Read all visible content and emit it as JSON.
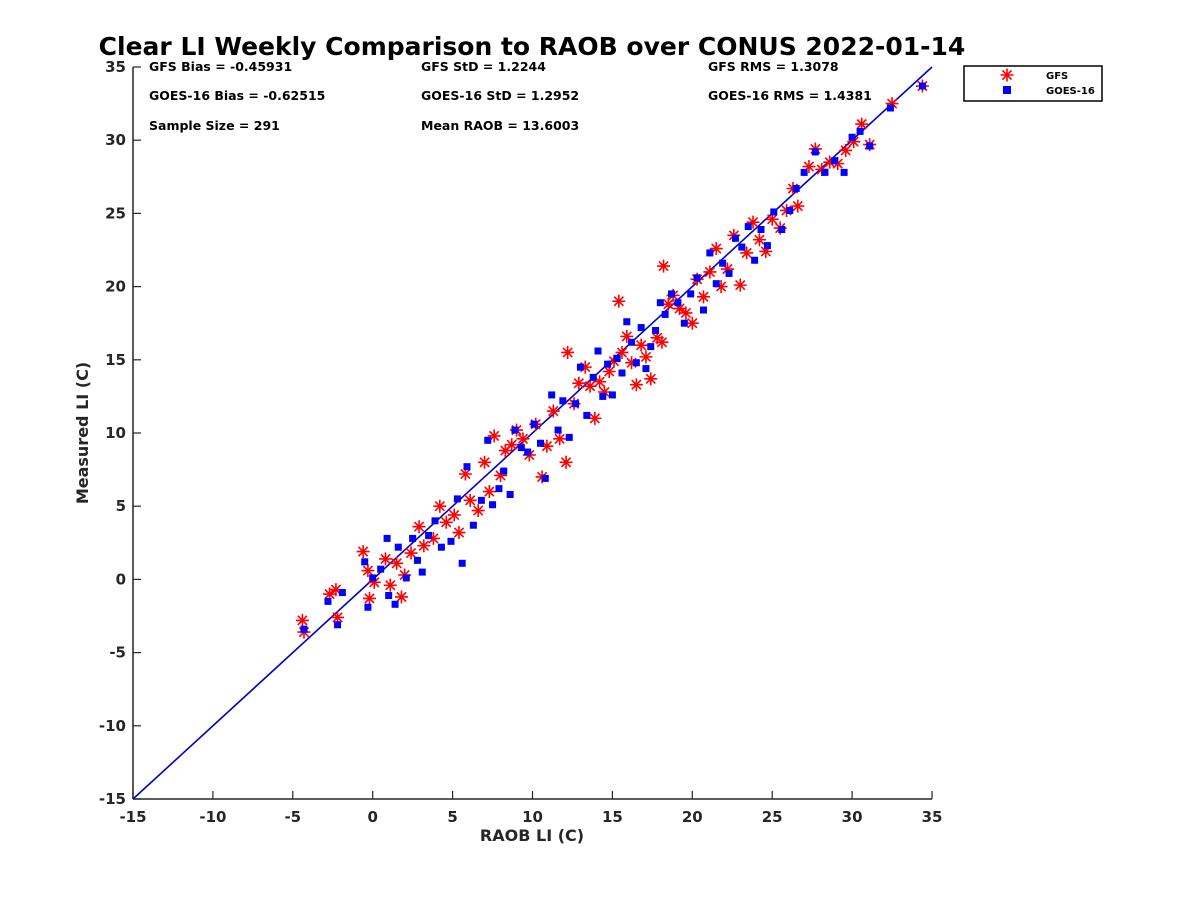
{
  "chart_data": {
    "type": "scatter",
    "title": "Clear LI Weekly Comparison to RAOB over CONUS 2022-01-14",
    "xlabel": "RAOB LI (C)",
    "ylabel": "Measured LI (C)",
    "xlim": [
      -15,
      35
    ],
    "ylim": [
      -15,
      35
    ],
    "xticks": [
      "-15",
      "-10",
      "-5",
      "0",
      "5",
      "10",
      "15",
      "20",
      "25",
      "30",
      "35"
    ],
    "yticks": [
      "-15",
      "-10",
      "-5",
      "0",
      "5",
      "10",
      "15",
      "20",
      "25",
      "30",
      "35"
    ],
    "reference_line": {
      "from": [
        -15,
        -15
      ],
      "to": [
        35,
        35
      ],
      "color": "#0000cc"
    },
    "stats": {
      "gfs_bias": "GFS Bias = -0.45931",
      "gfs_std": "GFS StD = 1.2244",
      "gfs_rms": "GFS RMS = 1.3078",
      "goes_bias": "GOES-16 Bias = -0.62515",
      "goes_std": "GOES-16 StD = 1.2952",
      "goes_rms": "GOES-16 RMS = 1.4381",
      "sample_size": "Sample Size = 291",
      "mean_raob": "Mean RAOB = 13.6003"
    },
    "legend": {
      "position": "top-right-outside",
      "entries": [
        "GFS",
        "GOES-16"
      ]
    },
    "series": [
      {
        "name": "GFS",
        "marker": "asterisk",
        "color": "#ff0000",
        "x": [
          -4.4,
          -4.3,
          -2.7,
          -2.3,
          -2.2,
          -0.6,
          -0.3,
          -0.2,
          0.1,
          0.8,
          1.1,
          1.5,
          1.8,
          2.0,
          2.4,
          2.9,
          3.2,
          3.8,
          4.2,
          4.6,
          5.1,
          5.4,
          5.8,
          6.1,
          6.6,
          7.0,
          7.3,
          7.6,
          8.0,
          8.3,
          8.7,
          9.0,
          9.4,
          9.8,
          10.2,
          10.6,
          10.9,
          11.3,
          11.7,
          12.1,
          12.2,
          12.6,
          12.9,
          13.3,
          13.6,
          13.9,
          14.2,
          14.5,
          14.8,
          15.1,
          15.4,
          15.6,
          15.9,
          16.2,
          16.5,
          16.8,
          17.1,
          17.4,
          17.8,
          18.1,
          18.2,
          18.5,
          18.8,
          19.2,
          19.6,
          20.0,
          20.3,
          20.7,
          21.1,
          21.5,
          21.8,
          22.2,
          22.6,
          23.0,
          23.4,
          23.8,
          24.2,
          24.6,
          25.0,
          25.5,
          25.9,
          26.3,
          26.6,
          27.3,
          27.7,
          28.1,
          28.6,
          29.1,
          29.6,
          30.1,
          30.6,
          31.1,
          32.5,
          34.4
        ],
        "y": [
          -2.8,
          -3.6,
          -1.0,
          -0.7,
          -2.6,
          1.9,
          0.6,
          -1.3,
          -0.2,
          1.4,
          -0.4,
          1.1,
          -1.2,
          0.3,
          1.8,
          3.6,
          2.3,
          2.8,
          5.0,
          3.9,
          4.4,
          3.2,
          7.2,
          5.4,
          4.7,
          8.0,
          6.0,
          9.8,
          7.1,
          8.8,
          9.2,
          10.2,
          9.6,
          8.5,
          10.6,
          7.0,
          9.1,
          11.5,
          9.6,
          8.0,
          15.5,
          12.0,
          13.4,
          14.5,
          13.2,
          11.0,
          13.5,
          12.8,
          14.2,
          14.9,
          19.0,
          15.5,
          16.6,
          14.8,
          13.3,
          16.0,
          15.2,
          13.7,
          16.5,
          16.2,
          21.4,
          18.8,
          19.4,
          18.5,
          18.2,
          17.5,
          20.5,
          19.3,
          21.0,
          22.6,
          20.0,
          21.2,
          23.5,
          20.1,
          22.3,
          24.4,
          23.2,
          22.4,
          24.6,
          24.0,
          25.2,
          26.7,
          25.5,
          28.2,
          29.4,
          28.0,
          28.5,
          28.4,
          29.3,
          29.9,
          31.1,
          29.7,
          32.5,
          33.7
        ]
      },
      {
        "name": "GOES-16",
        "marker": "square",
        "color": "#0000ff",
        "x": [
          -4.3,
          -2.8,
          -2.2,
          -1.9,
          -0.5,
          -0.3,
          0.0,
          0.5,
          0.9,
          1.0,
          1.4,
          1.6,
          2.1,
          2.5,
          2.8,
          3.1,
          3.5,
          3.9,
          4.3,
          4.9,
          5.3,
          5.6,
          5.9,
          6.3,
          6.8,
          7.2,
          7.5,
          7.9,
          8.2,
          8.6,
          8.9,
          9.3,
          9.7,
          10.1,
          10.5,
          10.8,
          11.2,
          11.6,
          11.9,
          12.3,
          12.7,
          13.0,
          13.4,
          13.8,
          14.1,
          14.4,
          14.7,
          15.0,
          15.3,
          15.6,
          15.9,
          16.2,
          16.5,
          16.8,
          17.1,
          17.4,
          17.7,
          18.0,
          18.3,
          18.7,
          19.1,
          19.5,
          19.9,
          20.3,
          20.7,
          21.1,
          21.5,
          21.9,
          22.3,
          22.7,
          23.1,
          23.5,
          23.9,
          24.3,
          24.7,
          25.1,
          25.6,
          26.1,
          26.5,
          27.0,
          27.7,
          28.3,
          28.9,
          29.5,
          30.0,
          30.5,
          31.1,
          32.4,
          34.4
        ],
        "y": [
          -3.4,
          -1.5,
          -3.1,
          -0.9,
          1.2,
          -1.9,
          0.1,
          0.7,
          2.8,
          -1.1,
          -1.7,
          2.2,
          0.1,
          2.8,
          1.3,
          0.5,
          3.0,
          4.0,
          2.2,
          2.6,
          5.5,
          1.1,
          7.7,
          3.7,
          5.4,
          9.5,
          5.1,
          6.2,
          7.4,
          5.8,
          10.2,
          9.0,
          8.7,
          10.6,
          9.3,
          6.9,
          12.6,
          10.2,
          12.2,
          9.7,
          12.0,
          14.5,
          11.2,
          13.8,
          15.6,
          12.5,
          14.7,
          12.6,
          15.1,
          14.1,
          17.6,
          16.2,
          14.8,
          17.2,
          14.4,
          15.9,
          17.0,
          18.9,
          18.1,
          19.5,
          18.9,
          17.5,
          19.5,
          20.6,
          18.4,
          22.3,
          20.2,
          21.6,
          20.9,
          23.3,
          22.7,
          24.1,
          21.8,
          23.9,
          22.8,
          25.1,
          23.9,
          25.2,
          26.7,
          27.8,
          29.2,
          27.8,
          28.6,
          27.8,
          30.2,
          30.6,
          29.6,
          32.2,
          33.7
        ]
      }
    ]
  }
}
